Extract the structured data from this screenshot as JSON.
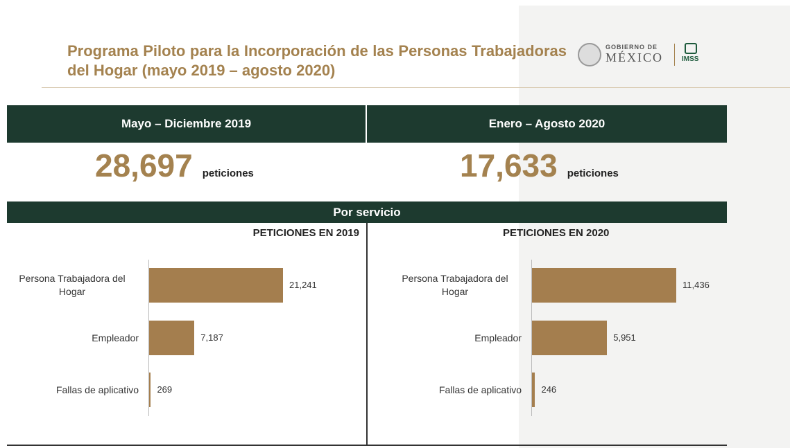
{
  "header": {
    "title": "Programa Piloto para la Incorporación de las Personas Trabajadoras del Hogar (mayo 2019 – agosto 2020)",
    "logo_top": "GOBIERNO DE",
    "logo_main": "MÉXICO",
    "logo_imss": "IMSS"
  },
  "summary": [
    {
      "period": "Mayo – Diciembre 2019",
      "total": "28,697",
      "unit": "peticiones"
    },
    {
      "period": "Enero – Agosto 2020",
      "total": "17,633",
      "unit": "peticiones"
    }
  ],
  "section_title": "Por servicio",
  "chart_data": [
    {
      "type": "bar",
      "orientation": "horizontal",
      "title": "PETICIONES EN 2019",
      "categories": [
        "Persona Trabajadora del Hogar",
        "Empleador",
        "Fallas de aplicativo"
      ],
      "values": [
        21241,
        7187,
        269
      ],
      "value_labels": [
        "21,241",
        "7,187",
        "269"
      ],
      "color": "#a47e4e"
    },
    {
      "type": "bar",
      "orientation": "horizontal",
      "title": "PETICIONES EN 2020",
      "categories": [
        "Persona Trabajadora del Hogar",
        "Empleador",
        "Fallas de aplicativo"
      ],
      "values": [
        11436,
        5951,
        246
      ],
      "value_labels": [
        "11,436",
        "5,951",
        "246"
      ],
      "color": "#a47e4e"
    }
  ]
}
